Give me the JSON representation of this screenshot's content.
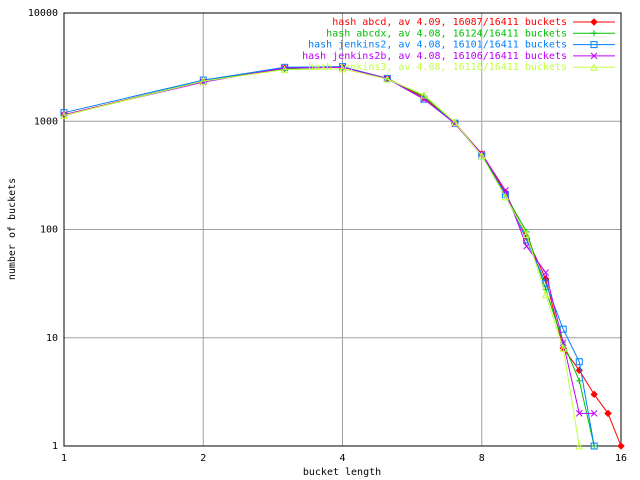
{
  "chart_data": {
    "type": "line",
    "x_label": "bucket length",
    "y_label": "number of buckets",
    "x": [
      1,
      2,
      3,
      4,
      5,
      6,
      7,
      8,
      9,
      10,
      11,
      12,
      13,
      14,
      15,
      16
    ],
    "xlim": [
      1,
      16
    ],
    "ylim": [
      1,
      10000
    ],
    "xticks": [
      1,
      2,
      4,
      8,
      16
    ],
    "yticks": [
      1,
      10,
      100,
      1000,
      10000
    ],
    "xlog": true,
    "ylog": true,
    "grid": true,
    "legend": "top-right",
    "series": [
      {
        "name": "hash abcd, av 4.09, 16087/16411 buckets",
        "color": "#ff0000",
        "marker": "diamond",
        "values": [
          1150,
          2350,
          3100,
          3150,
          2500,
          1650,
          970,
          500,
          220,
          85,
          35,
          8,
          5,
          3,
          2,
          1
        ]
      },
      {
        "name": "hash abcdx, av 4.08, 16124/16411 buckets",
        "color": "#00c000",
        "marker": "plus",
        "values": [
          1130,
          2370,
          3050,
          3200,
          2480,
          1700,
          960,
          490,
          210,
          95,
          28,
          9,
          4,
          1,
          null,
          null
        ]
      },
      {
        "name": "hash jenkins2, av 4.08, 16101/16411 buckets",
        "color": "#0080ff",
        "marker": "square",
        "values": [
          1200,
          2400,
          3150,
          3200,
          2480,
          1600,
          960,
          480,
          210,
          80,
          32,
          12,
          6,
          1,
          null,
          null
        ]
      },
      {
        "name": "hash jenkins2b, av 4.08, 16106/16411 buckets",
        "color": "#c000ff",
        "marker": "cross",
        "values": [
          1150,
          2300,
          3100,
          3150,
          2480,
          1600,
          950,
          500,
          230,
          70,
          40,
          9,
          2,
          2,
          null,
          null
        ]
      },
      {
        "name": "hash jenkins3, av 4.08, 16116/16411 buckets",
        "color": "#c0ff40",
        "marker": "triangle",
        "values": [
          1130,
          2350,
          3000,
          3050,
          2450,
          1750,
          980,
          480,
          200,
          90,
          25,
          8,
          1,
          null,
          null,
          null
        ]
      }
    ]
  }
}
